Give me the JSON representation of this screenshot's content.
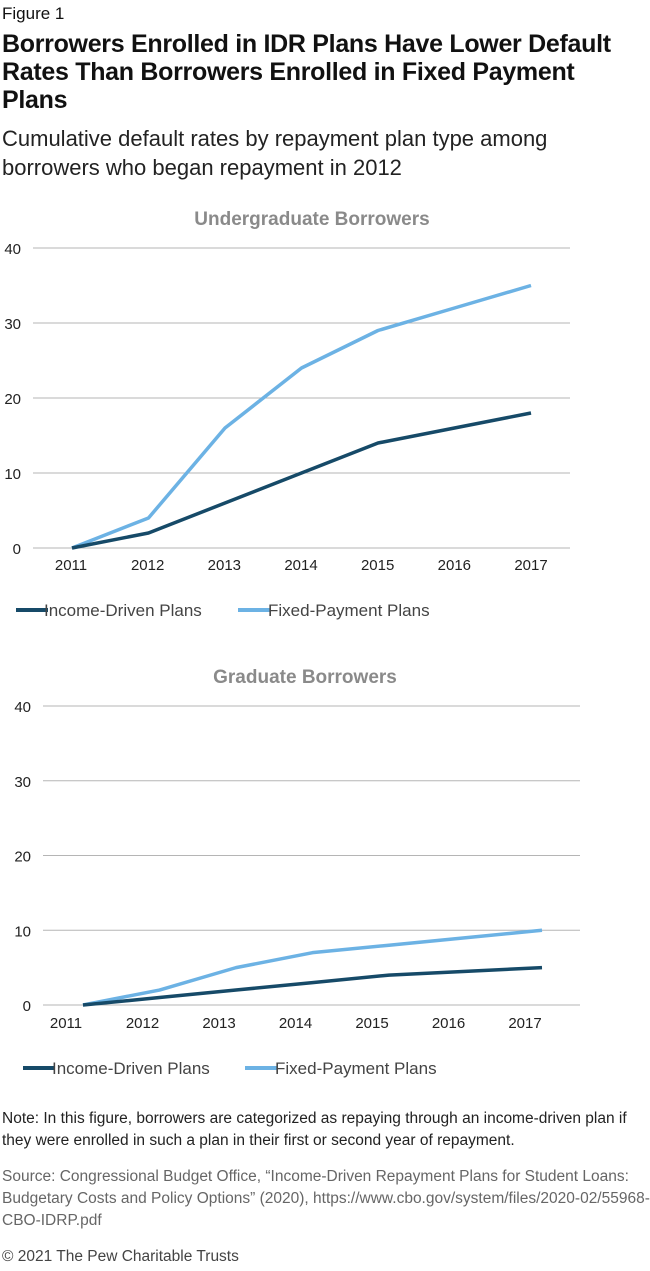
{
  "figure_label": "Figure 1",
  "title": "Borrowers Enrolled in IDR Plans Have Lower Default Rates Than Borrowers Enrolled in Fixed Payment Plans",
  "subtitle": "Cumulative default rates by repayment plan type among borrowers who began repayment in 2012",
  "colors": {
    "income_driven": "#164a68",
    "fixed_payment": "#6cb2e4",
    "grid": "#b5b5b5"
  },
  "chart_data": [
    {
      "type": "line",
      "title": "Undergraduate Borrowers",
      "categories": [
        "2011",
        "2012",
        "2013",
        "2014",
        "2015",
        "2016",
        "2017"
      ],
      "y_ticks": [
        "0",
        "10",
        "20",
        "30",
        "40"
      ],
      "ylim": [
        0,
        40
      ],
      "grid": true,
      "legend_position": "bottom-left",
      "series": [
        {
          "name": "Income-Driven Plans",
          "values": [
            0,
            2,
            6,
            10,
            14,
            16,
            18
          ]
        },
        {
          "name": "Fixed-Payment Plans",
          "values": [
            0,
            4,
            16,
            24,
            29,
            32,
            35
          ]
        }
      ]
    },
    {
      "type": "line",
      "title": "Graduate Borrowers",
      "categories": [
        "2011",
        "2012",
        "2013",
        "2014",
        "2015",
        "2016",
        "2017"
      ],
      "y_ticks": [
        "0",
        "10",
        "20",
        "30",
        "40"
      ],
      "ylim": [
        0,
        40
      ],
      "grid": true,
      "legend_position": "bottom-left",
      "series": [
        {
          "name": "Income-Driven Plans",
          "values": [
            0,
            1,
            2,
            3,
            4,
            4.5,
            5
          ]
        },
        {
          "name": "Fixed-Payment Plans",
          "values": [
            0,
            2,
            5,
            7,
            8,
            9,
            10
          ]
        }
      ]
    }
  ],
  "note": "Note: In this figure, borrowers are categorized as repaying through an income-driven plan if they were enrolled in such a plan in their first or second year of repayment.",
  "source": "Source: Congressional Budget Office, “Income-Driven Repayment Plans for Student Loans: Budgetary Costs and Policy Options” (2020), https://www.cbo.gov/system/files/2020-02/55968-CBO-IDRP.pdf",
  "copyright": "© 2021 The Pew Charitable Trusts"
}
